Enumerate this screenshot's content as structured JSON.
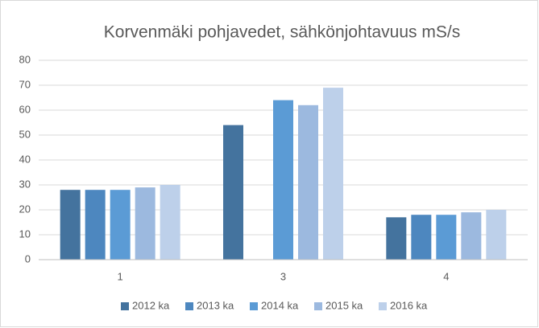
{
  "chart_data": {
    "type": "bar",
    "title": "Korvenmäki pohjavedet, sähkönjohtavuus mS/s",
    "categories": [
      "1",
      "3",
      "4"
    ],
    "series": [
      {
        "name": "2012 ka",
        "color": "#44739e",
        "values": [
          28,
          54,
          17
        ]
      },
      {
        "name": "2013 ka",
        "color": "#4d87bf",
        "values": [
          28,
          null,
          18
        ]
      },
      {
        "name": "2014 ka",
        "color": "#5b9bd5",
        "values": [
          28,
          64,
          18
        ]
      },
      {
        "name": "2015 ka",
        "color": "#9cb9df",
        "values": [
          29,
          62,
          19
        ]
      },
      {
        "name": "2016 ka",
        "color": "#bdd0ea",
        "values": [
          30,
          69,
          20
        ]
      }
    ],
    "ylim": [
      0,
      80
    ],
    "yticks": [
      0,
      10,
      20,
      30,
      40,
      50,
      60,
      70,
      80
    ],
    "grid": true,
    "legend": "bottom"
  }
}
